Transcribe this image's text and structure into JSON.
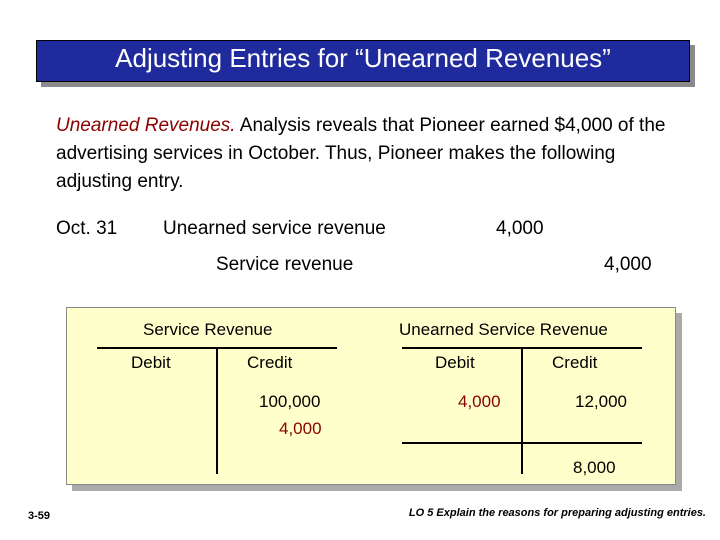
{
  "title": "Adjusting Entries for “Unearned Revenues”",
  "intro": {
    "lead": "Unearned Revenues.",
    "text": " Analysis reveals that Pioneer earned $4,000 of the advertising services in October. Thus, Pioneer makes the following adjusting entry."
  },
  "entry": {
    "date": "Oct. 31",
    "debit_account": "Unearned service revenue",
    "debit_amount": "4,000",
    "credit_account": "Service revenue",
    "credit_amount": "4,000"
  },
  "t_accounts": {
    "service_revenue": {
      "title": "Service Revenue",
      "debit_label": "Debit",
      "credit_label": "Credit",
      "credit_values": [
        "100,000",
        "4,000"
      ]
    },
    "unearned_service_revenue": {
      "title": "Unearned Service Revenue",
      "debit_label": "Debit",
      "credit_label": "Credit",
      "debit_values": [
        "4,000"
      ],
      "credit_values": [
        "12,000"
      ],
      "balance": "8,000"
    }
  },
  "footer": {
    "page": "3-59",
    "lo": "LO 5  Explain the reasons for preparing adjusting entries."
  },
  "colors": {
    "title_bg": "#1f2a9c",
    "accent_red": "#8b0000",
    "panel_bg": "#ffffcc"
  }
}
